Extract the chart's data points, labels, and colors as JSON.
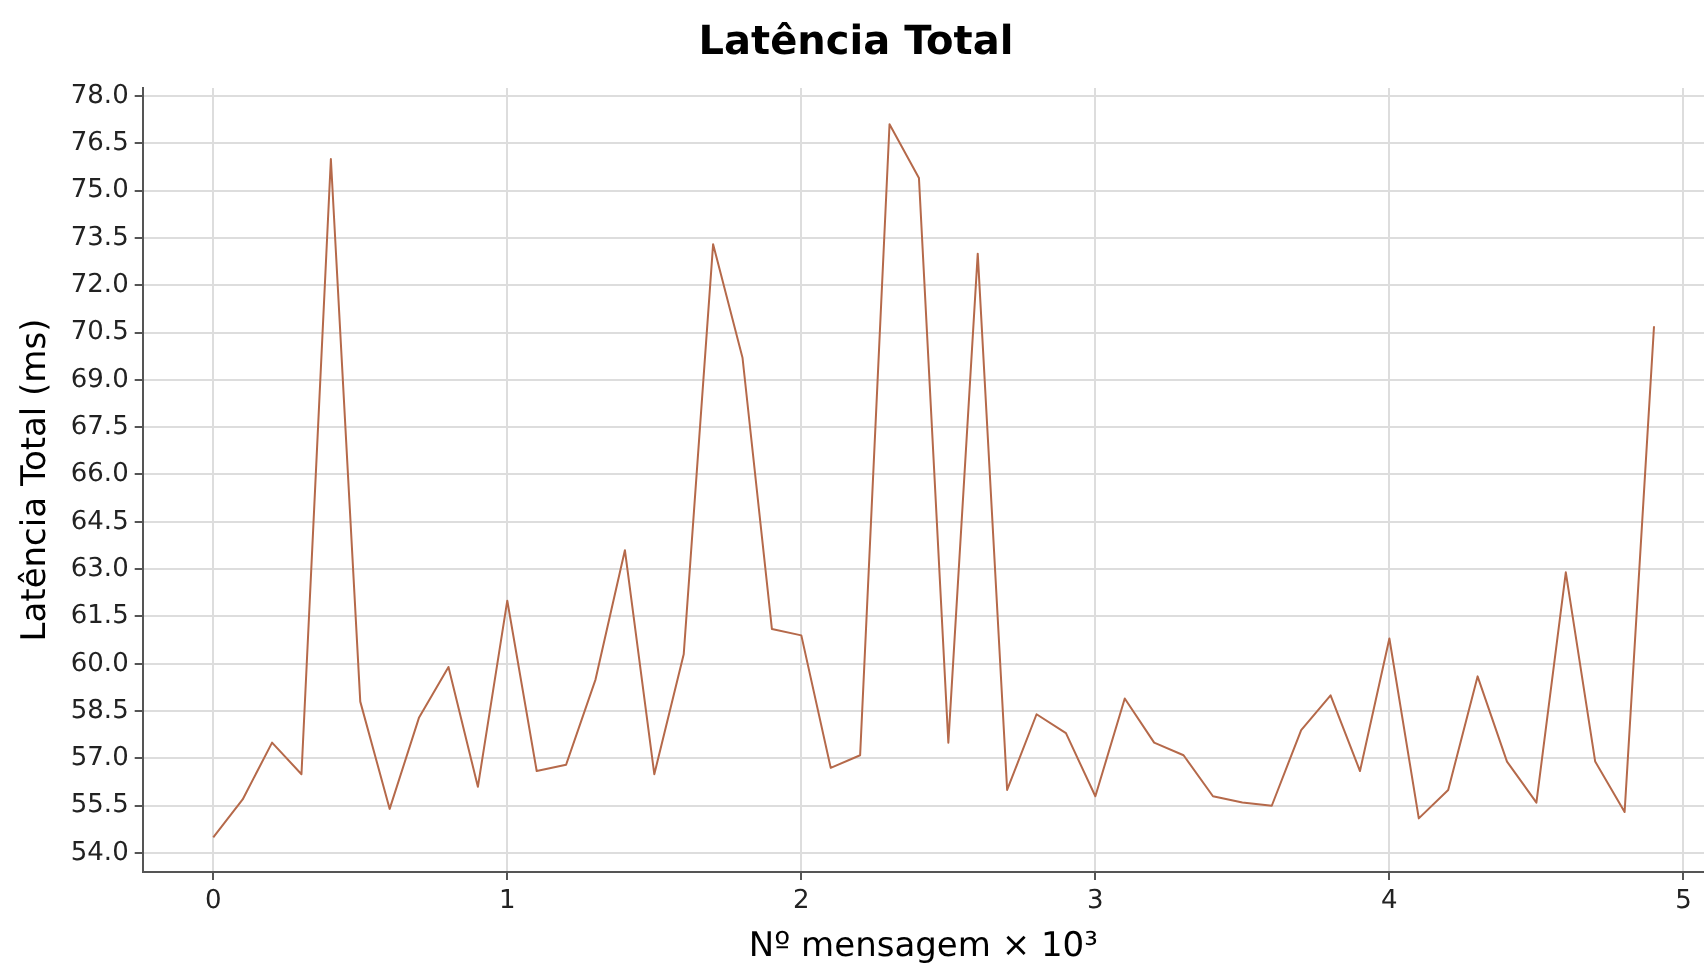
{
  "chart_data": {
    "type": "line",
    "title": "Latência Total",
    "xlabel": "Nº mensagem × 10³",
    "ylabel": "Latência Total (ms)",
    "x": [
      0,
      0.1,
      0.2,
      0.3,
      0.4,
      0.5,
      0.6,
      0.7,
      0.8,
      0.9,
      1.0,
      1.1,
      1.2,
      1.3,
      1.4,
      1.5,
      1.6,
      1.7,
      1.8,
      1.9,
      2.0,
      2.1,
      2.2,
      2.3,
      2.4,
      2.5,
      2.6,
      2.7,
      2.8,
      2.9,
      3.0,
      3.1,
      3.2,
      3.3,
      3.4,
      3.5,
      3.6,
      3.7,
      3.8,
      3.9,
      4.0,
      4.1,
      4.2,
      4.3,
      4.4,
      4.5,
      4.6,
      4.7,
      4.8,
      4.9
    ],
    "series": [
      {
        "color": "#b5694a",
        "values": [
          54.5,
          55.7,
          57.5,
          56.5,
          76.0,
          58.8,
          55.4,
          58.3,
          59.9,
          56.1,
          62.0,
          56.6,
          56.8,
          59.5,
          63.6,
          56.5,
          60.3,
          73.3,
          69.7,
          61.1,
          60.9,
          56.7,
          57.1,
          77.1,
          75.4,
          57.5,
          73.0,
          56.0,
          58.4,
          57.8,
          55.8,
          58.9,
          57.5,
          57.1,
          55.8,
          55.6,
          55.5,
          57.9,
          59.0,
          56.6,
          60.8,
          55.1,
          56.0,
          59.6,
          56.9,
          55.6,
          62.9,
          56.9,
          55.3,
          70.7
        ]
      }
    ],
    "xlim": [
      -0.24,
      5.07
    ],
    "xticks": [
      0,
      1,
      2,
      3,
      4,
      5
    ],
    "ylim": [
      53.4,
      78.25
    ],
    "yticks": [
      {
        "value": 54,
        "label": "54.0"
      },
      {
        "value": 55.5,
        "label": "55.5"
      },
      {
        "value": 57,
        "label": "57.0"
      },
      {
        "value": 58.5,
        "label": "58.5"
      },
      {
        "value": 60,
        "label": "60.0"
      },
      {
        "value": 61.5,
        "label": "61.5"
      },
      {
        "value": 63,
        "label": "63.0"
      },
      {
        "value": 64.5,
        "label": "64.5"
      },
      {
        "value": 66,
        "label": "66.0"
      },
      {
        "value": 67.5,
        "label": "67.5"
      },
      {
        "value": 69,
        "label": "69.0"
      },
      {
        "value": 70.5,
        "label": "70.5"
      },
      {
        "value": 72,
        "label": "72.0"
      },
      {
        "value": 73.5,
        "label": "73.5"
      },
      {
        "value": 75,
        "label": "75.0"
      },
      {
        "value": 76.5,
        "label": "76.5"
      },
      {
        "value": 78,
        "label": "78.0"
      }
    ],
    "grid": true,
    "legend": false,
    "marker": "none",
    "line_style": "solid"
  }
}
